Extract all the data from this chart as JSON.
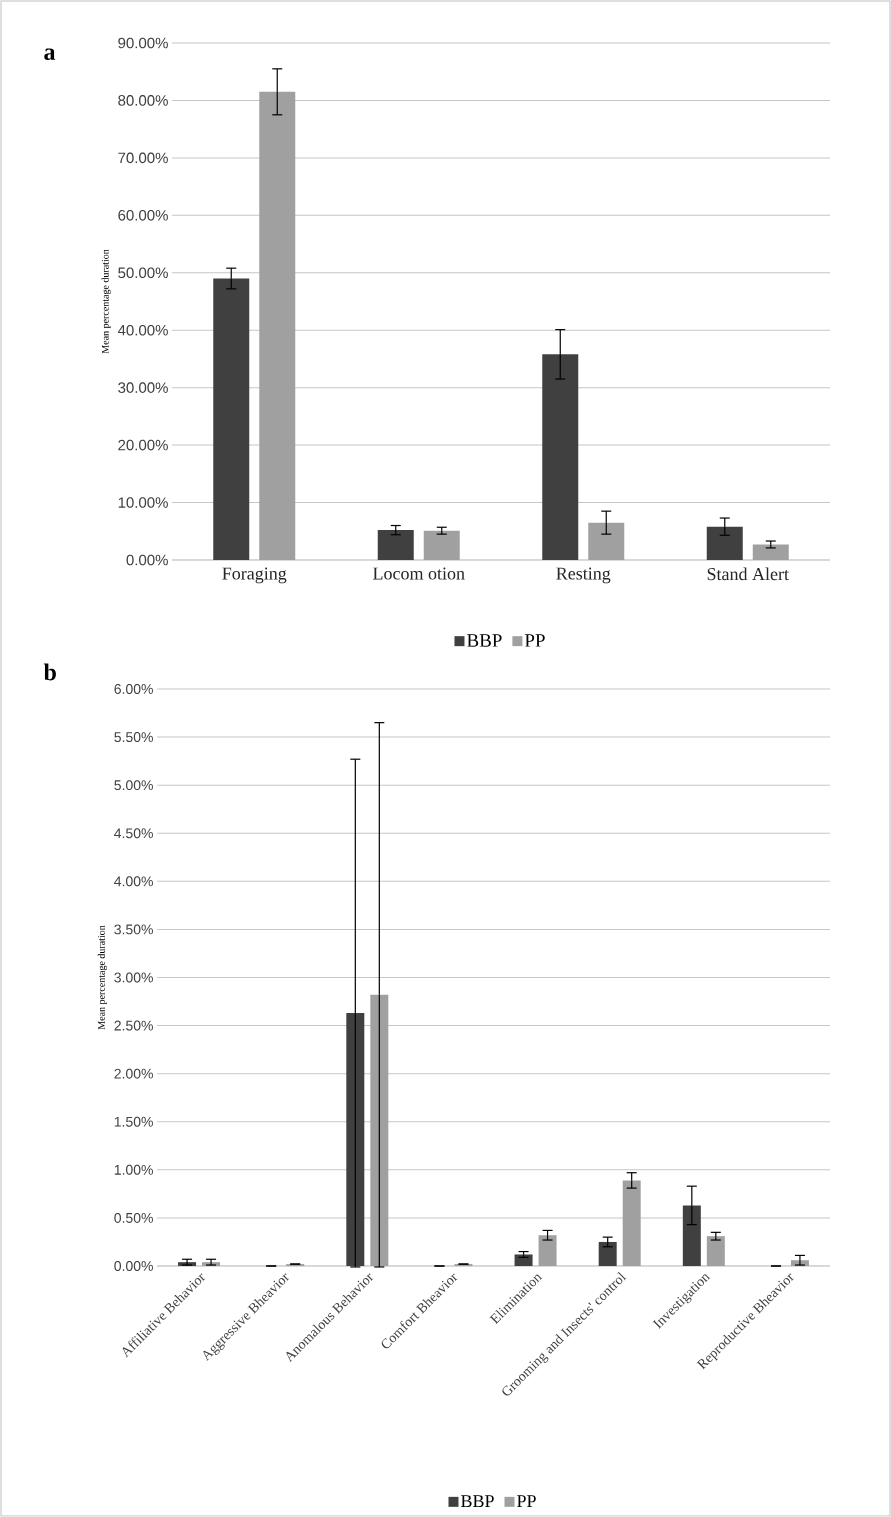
{
  "chart_data": [
    {
      "type": "bar",
      "title": "a",
      "ylabel": "Mean percentage duration",
      "categories": [
        "Foraging",
        "Locom otion",
        "Resting",
        "Stand Alert"
      ],
      "series": [
        {
          "name": "BBP",
          "color": "#404040",
          "values": [
            49.0,
            5.2,
            35.8,
            5.8
          ],
          "errors": [
            1.8,
            0.8,
            4.3,
            1.5
          ]
        },
        {
          "name": "PP",
          "color": "#a0a0a0",
          "values": [
            81.5,
            5.1,
            6.5,
            2.7
          ],
          "errors": [
            4.0,
            0.6,
            2.0,
            0.6
          ]
        }
      ],
      "ylim": [
        0,
        90
      ],
      "yticks": [
        {
          "value": 0,
          "label": "0.00%"
        },
        {
          "value": 10,
          "label": "10.00%"
        },
        {
          "value": 20,
          "label": "20.00%"
        },
        {
          "value": 30,
          "label": "30.00%"
        },
        {
          "value": 40,
          "label": "40.00%"
        },
        {
          "value": 50,
          "label": "50.00%"
        },
        {
          "value": 60,
          "label": "60.00%"
        },
        {
          "value": 70,
          "label": "70.00%"
        },
        {
          "value": 80,
          "label": "80.00%"
        },
        {
          "value": 90,
          "label": "90.00%"
        }
      ],
      "grid": "y",
      "legend": "bottom"
    },
    {
      "type": "bar",
      "title": "b",
      "ylabel": "Mean percentage duration",
      "categories": [
        "Affiliative Behavior",
        "Aggressive Bheavior",
        "Anomalous Behavior",
        "Comfort Bheavior",
        "Elimination",
        "Grooming and Insects' control",
        "Investigation",
        "Reproductive Bheavior"
      ],
      "series": [
        {
          "name": "BBP",
          "color": "#404040",
          "values": [
            0.04,
            0,
            2.63,
            0,
            0.12,
            0.25,
            0.63,
            0
          ],
          "errors": [
            0.03,
            null,
            2.64,
            null,
            0.03,
            0.05,
            0.2,
            null
          ]
        },
        {
          "name": "PP",
          "color": "#a0a0a0",
          "values": [
            0.04,
            0.02,
            2.82,
            0.02,
            0.32,
            0.89,
            0.31,
            0.06
          ],
          "errors": [
            0.03,
            null,
            2.83,
            null,
            0.05,
            0.08,
            0.04,
            0.05
          ]
        }
      ],
      "ylim": [
        0,
        6
      ],
      "yticks": [
        {
          "value": 0,
          "label": "0.00%"
        },
        {
          "value": 0.5,
          "label": "0.50%"
        },
        {
          "value": 1,
          "label": "1.00%"
        },
        {
          "value": 1.5,
          "label": "1.50%"
        },
        {
          "value": 2,
          "label": "2.00%"
        },
        {
          "value": 2.5,
          "label": "2.50%"
        },
        {
          "value": 3,
          "label": "3.00%"
        },
        {
          "value": 3.5,
          "label": "3.50%"
        },
        {
          "value": 4,
          "label": "4.00%"
        },
        {
          "value": 4.5,
          "label": "4.50%"
        },
        {
          "value": 5,
          "label": "5.00%"
        },
        {
          "value": 5.5,
          "label": "5.50%"
        },
        {
          "value": 6,
          "label": "6.00%"
        }
      ],
      "grid": "y",
      "legend": "bottom"
    }
  ]
}
